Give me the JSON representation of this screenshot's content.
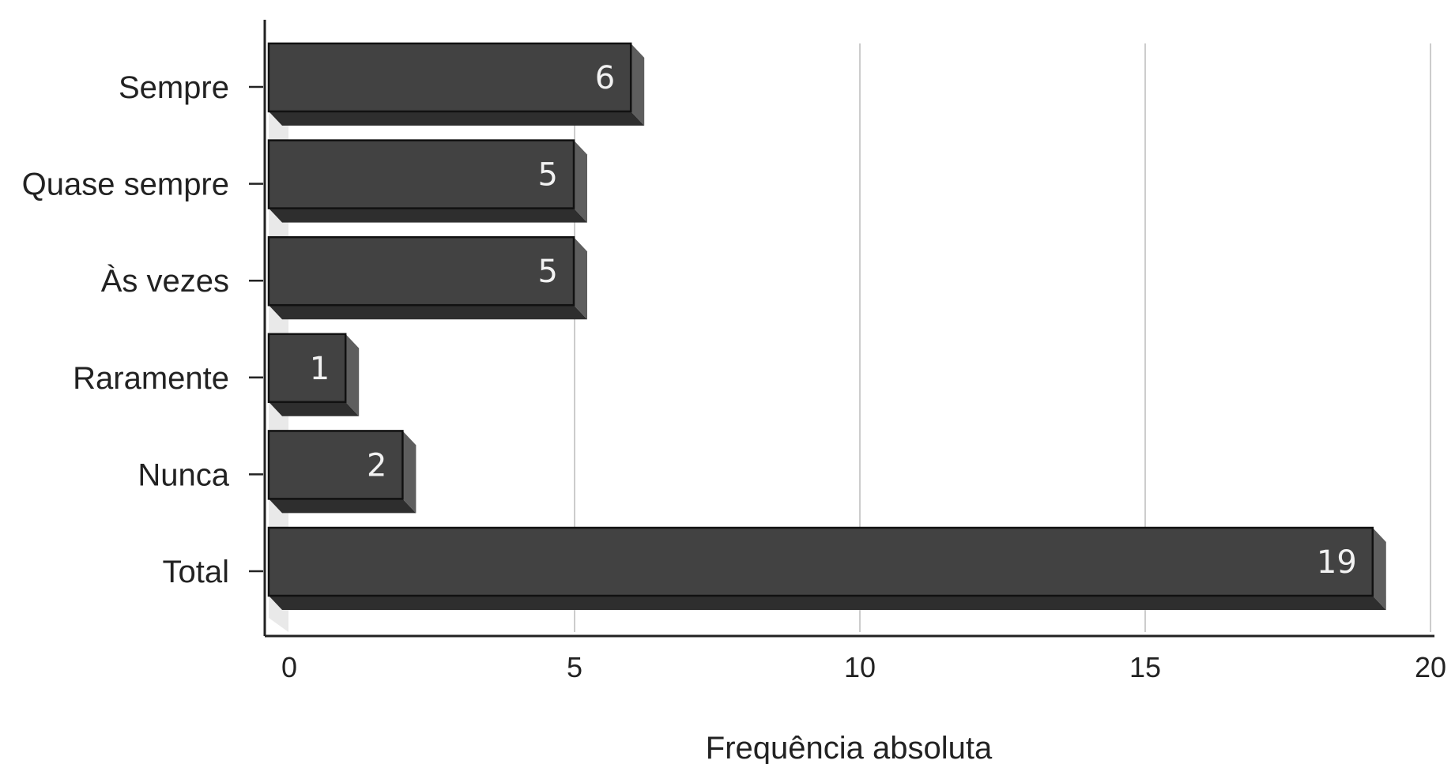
{
  "chart_data": {
    "type": "bar",
    "orientation": "horizontal",
    "categories": [
      "Sempre",
      "Quase sempre",
      "Às vezes",
      "Raramente",
      "Nunca",
      "Total"
    ],
    "values": [
      6,
      5,
      5,
      1,
      2,
      19
    ],
    "value_labels": [
      "6",
      "5",
      "5",
      "1",
      "2",
      "19"
    ],
    "xlabel": "Frequência absoluta",
    "ylabel": "",
    "xlim": [
      0,
      20
    ],
    "xticks": [
      0,
      5,
      10,
      15,
      20
    ],
    "xtick_labels": [
      "0",
      "5",
      "10",
      "15",
      "20"
    ],
    "grid": "vertical",
    "bar_style": "3d",
    "colors": {
      "bar_front": "#424242",
      "bar_side": "#5e5e5e",
      "bar_bottom": "#2e2e2e",
      "bar_outline": "#111111",
      "wall": "#e9e9e9",
      "grid": "#cccccc",
      "axis": "#222222",
      "value_text": "#f2f2f2"
    }
  }
}
